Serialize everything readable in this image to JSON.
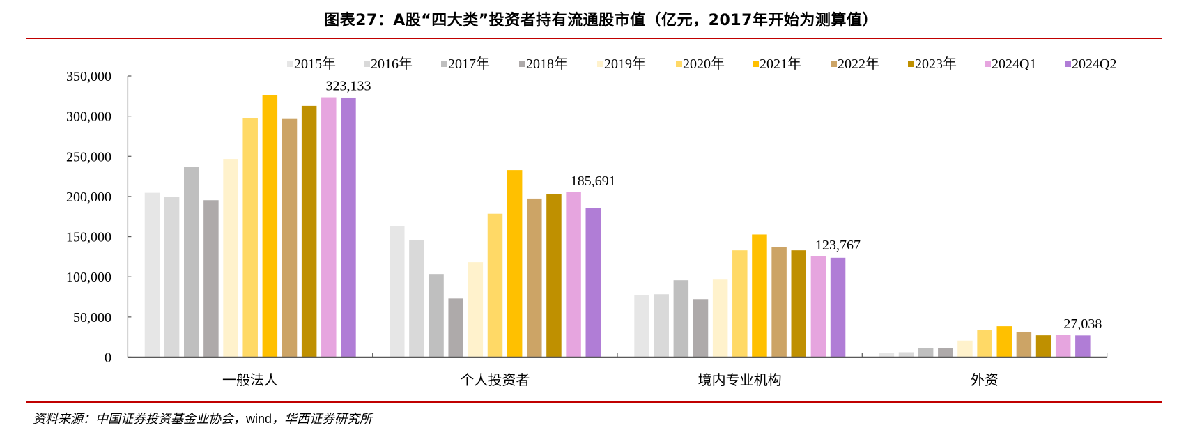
{
  "header": {
    "title": "图表27：A股“四大类”投资者持有流通股市值（亿元，2017年开始为测算值）"
  },
  "footer": {
    "source_prefix": "资料来源：中国证券投资基金业协会，",
    "source_wind": "wind",
    "source_suffix": "，华西证券研究所"
  },
  "colors": {
    "rule": "#c00000",
    "axis": "#595959"
  },
  "chart_data": {
    "type": "bar",
    "title": "图表27：A股“四大类”投资者持有流通股市值（亿元，2017年开始为测算值）",
    "xlabel": "",
    "ylabel": "",
    "ylim": [
      0,
      350000
    ],
    "yticks": [
      0,
      50000,
      100000,
      150000,
      200000,
      250000,
      300000,
      350000
    ],
    "ytick_labels": [
      "0",
      "50,000",
      "100,000",
      "150,000",
      "200,000",
      "250,000",
      "300,000",
      "350,000"
    ],
    "grid": false,
    "legend_position": "top",
    "categories": [
      "一般法人",
      "个人投资者",
      "境内专业机构",
      "外资"
    ],
    "series": [
      {
        "name": "2015年",
        "color": "#e6e6e6",
        "values": [
          204600,
          162900,
          77400,
          5200
        ]
      },
      {
        "name": "2016年",
        "color": "#d9d9d9",
        "values": [
          199400,
          146100,
          78300,
          6100
        ]
      },
      {
        "name": "2017年",
        "color": "#bfbfbf",
        "values": [
          236500,
          103500,
          95700,
          11000
        ]
      },
      {
        "name": "2018年",
        "color": "#aeaaaa",
        "values": [
          195400,
          73000,
          72200,
          11000
        ]
      },
      {
        "name": "2019年",
        "color": "#fff2cc",
        "values": [
          246700,
          118300,
          96500,
          20600
        ]
      },
      {
        "name": "2020年",
        "color": "#ffd966",
        "values": [
          297400,
          178500,
          133000,
          33600
        ]
      },
      {
        "name": "2021年",
        "color": "#ffc000",
        "values": [
          326400,
          232800,
          152700,
          38500
        ]
      },
      {
        "name": "2022年",
        "color": "#cca466",
        "values": [
          296500,
          197400,
          137400,
          31300
        ]
      },
      {
        "name": "2023年",
        "color": "#bf9000",
        "values": [
          312800,
          202600,
          133000,
          27200
        ]
      },
      {
        "name": "2024Q1",
        "color": "#e6a5df",
        "values": [
          323500,
          205200,
          125500,
          27500
        ]
      },
      {
        "name": "2024Q2",
        "color": "#b07dd6",
        "values": [
          323133,
          185691,
          123767,
          27038
        ]
      }
    ],
    "annotations": [
      {
        "series": "2024Q2",
        "category": "一般法人",
        "text": "323,133"
      },
      {
        "series": "2024Q2",
        "category": "个人投资者",
        "text": "185,691"
      },
      {
        "series": "2024Q2",
        "category": "境内专业机构",
        "text": "123,767"
      },
      {
        "series": "2024Q2",
        "category": "外资",
        "text": "27,038"
      }
    ]
  }
}
